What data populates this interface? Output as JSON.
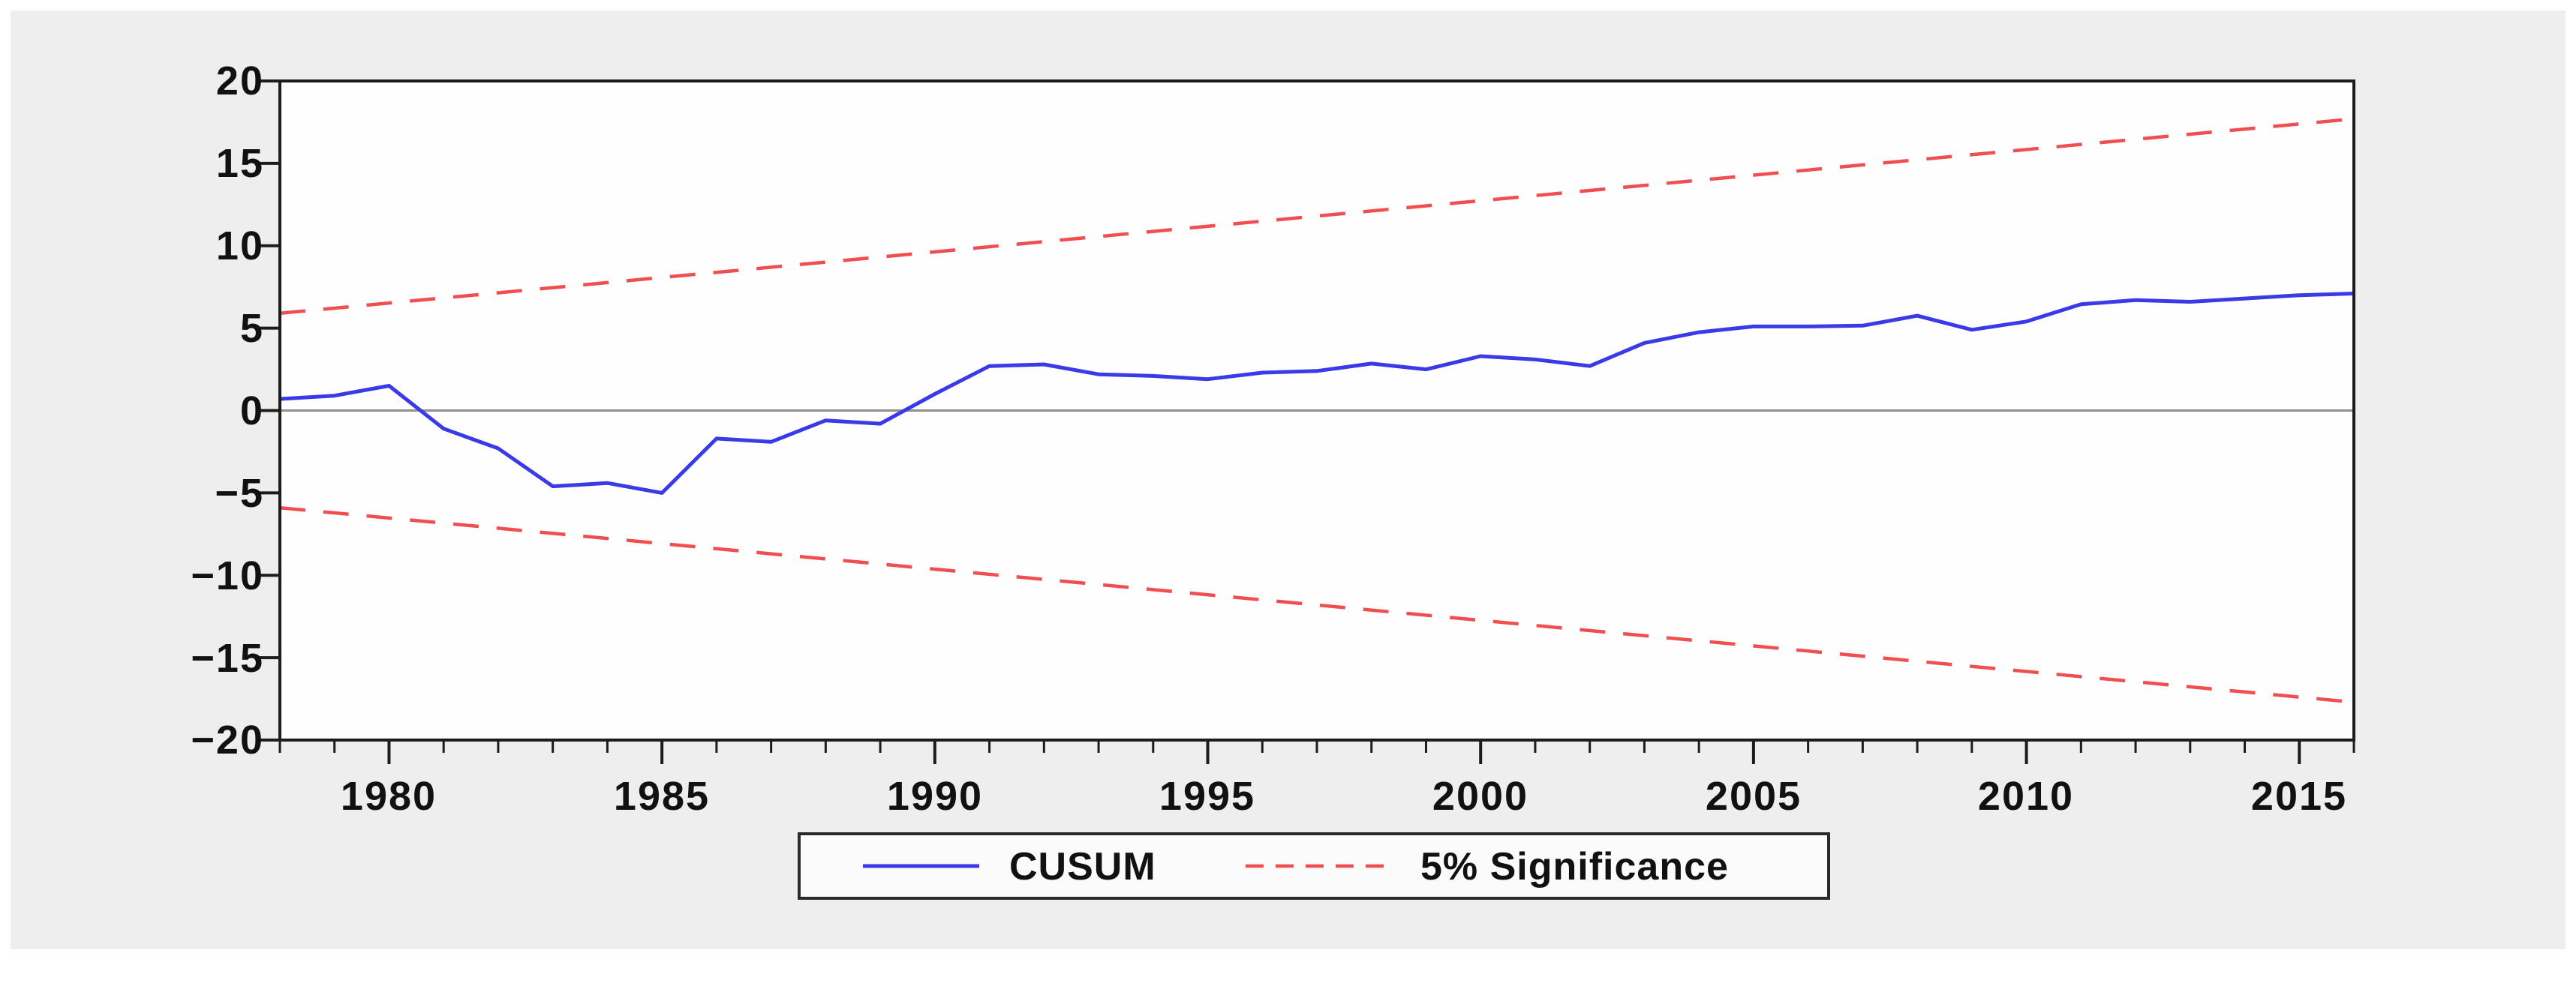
{
  "window": {
    "title": "CUSUM stability test chart",
    "background": "#ffffff",
    "panel_background": "#efeeee"
  },
  "chart_data": {
    "type": "line",
    "title": "",
    "xlabel": "",
    "ylabel": "",
    "xlim": [
      1978,
      2016
    ],
    "ylim": [
      -20,
      20
    ],
    "grid": false,
    "zero_line": true,
    "legend_position": "bottom-center",
    "x": [
      1978,
      1979,
      1980,
      1981,
      1982,
      1983,
      1984,
      1985,
      1986,
      1987,
      1988,
      1989,
      1990,
      1991,
      1992,
      1993,
      1994,
      1995,
      1996,
      1997,
      1998,
      1999,
      2000,
      2001,
      2002,
      2003,
      2004,
      2005,
      2006,
      2007,
      2008,
      2009,
      2010,
      2011,
      2012,
      2013,
      2014,
      2015,
      2016
    ],
    "series": [
      {
        "name": "CUSUM",
        "style": "solid",
        "color": "#3a3ae8",
        "values": [
          0.7,
          0.9,
          1.5,
          -1.1,
          -2.3,
          -4.6,
          -4.4,
          -5.0,
          -1.7,
          -1.9,
          -0.6,
          -0.8,
          1.0,
          2.7,
          2.8,
          2.2,
          2.1,
          1.9,
          2.3,
          2.4,
          2.85,
          2.5,
          3.3,
          3.1,
          2.7,
          4.1,
          4.75,
          5.1,
          5.1,
          5.15,
          5.75,
          4.9,
          5.4,
          6.45,
          6.7,
          6.6,
          6.8,
          7.0,
          7.1
        ]
      },
      {
        "name": "5% Significance (upper bound)",
        "style": "dashed",
        "color": "#f14f4f",
        "x": [
          1978,
          2016
        ],
        "values": [
          5.9,
          17.7
        ]
      },
      {
        "name": "5% Significance (lower bound)",
        "style": "dashed",
        "color": "#f14f4f",
        "x": [
          1978,
          2016
        ],
        "values": [
          -5.9,
          -17.7
        ]
      }
    ],
    "x_ticks_major": [
      1980,
      1985,
      1990,
      1995,
      2000,
      2005,
      2010,
      2015
    ],
    "x_tick_labels": [
      "1980",
      "1985",
      "1990",
      "1995",
      "2000",
      "2005",
      "2010",
      "2015"
    ],
    "x_ticks_minor_every_year": true,
    "y_ticks": [
      20,
      15,
      10,
      5,
      0,
      -5,
      -10,
      -15,
      -20
    ],
    "y_tick_labels": [
      "20",
      "15",
      "10",
      "5",
      "0",
      "−5",
      "−10",
      "−15",
      "−20"
    ],
    "legend": [
      {
        "label": "CUSUM",
        "style": "solid",
        "color": "#3a3ae8"
      },
      {
        "label": "5% Significance",
        "style": "dashed",
        "color": "#f14f4f"
      }
    ],
    "colors": {
      "axis": "#1c1c1c",
      "zero_line": "#8f8f8f",
      "plot_background": "#fefefe",
      "legend_border": "#2a2a2a",
      "legend_background": "#fbfbfb"
    }
  }
}
